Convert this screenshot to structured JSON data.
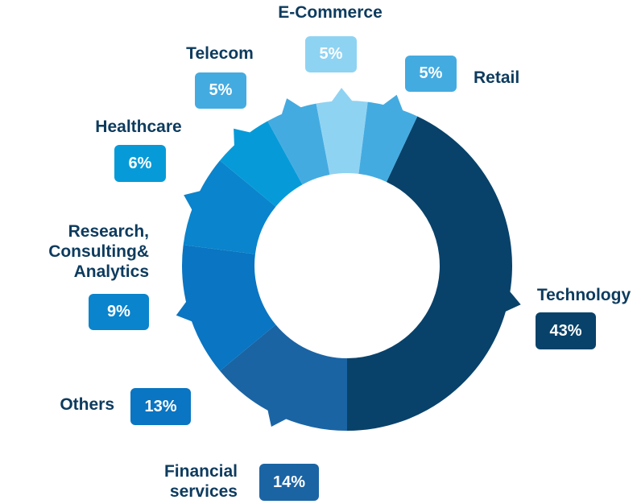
{
  "chart_data": {
    "type": "donut",
    "categories": [
      "Technology",
      "Financial services",
      "Others",
      "Research, Consulting& Analytics",
      "Healthcare",
      "Telecom",
      "E-Commerce",
      "Retail"
    ],
    "values": [
      43,
      14,
      13,
      9,
      6,
      5,
      5,
      5
    ],
    "value_labels": [
      "43%",
      "14%",
      "13%",
      "9%",
      "6%",
      "5%",
      "5%",
      "5%"
    ],
    "colors": [
      "#08426a",
      "#1a64a4",
      "#0a75c2",
      "#0a84cc",
      "#069bd8",
      "#44abe0",
      "#8fd3f2",
      "#44abe0"
    ]
  }
}
